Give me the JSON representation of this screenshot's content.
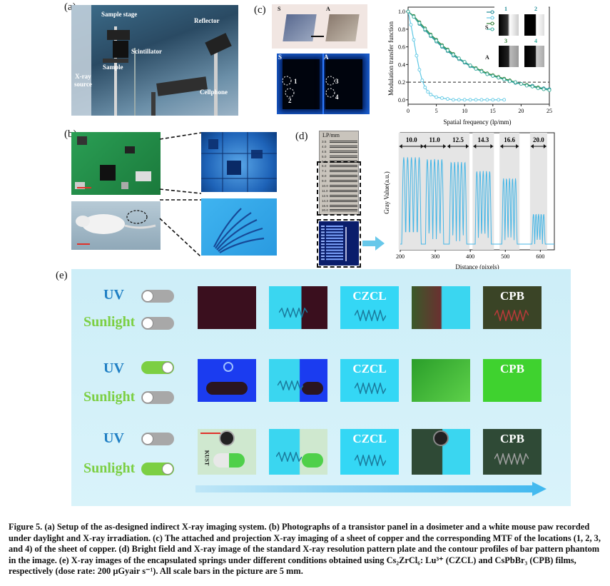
{
  "panel_labels": {
    "a": "(a)",
    "b": "(b)",
    "c": "(c)",
    "d": "(d)",
    "e": "(e)"
  },
  "panel_a": {
    "labels": {
      "sample_stage": "Sample stage",
      "reflector": "Reflector",
      "scintillator": "Scintillator",
      "sample": "Sample",
      "xray_source": "X-ray\nsource",
      "cellphone": "Cellphone"
    }
  },
  "panel_c": {
    "photo_labels": {
      "s": "S",
      "a": "A"
    },
    "xray_labels": {
      "s": "S",
      "a": "A",
      "p1": "1",
      "p2": "2",
      "p3": "3",
      "p4": "4"
    },
    "inset_labels": {
      "s": "S",
      "a": "A",
      "n1": "1",
      "n2": "2",
      "n3": "3",
      "n4": "4"
    }
  },
  "chart_data": [
    {
      "type": "line",
      "xlabel": "Spatial frequency (lp/mm)",
      "ylabel": "Modulation transfer function",
      "xlim": [
        0,
        25
      ],
      "ylim": [
        -0.05,
        1.05
      ],
      "xticks": [
        "0",
        "5",
        "10",
        "15",
        "20",
        "25"
      ],
      "yticks": [
        "0.0",
        "0.2",
        "0.4",
        "0.6",
        "0.8",
        "1.0"
      ],
      "reference_line": 0.2,
      "legend_position": "top-right",
      "series": [
        {
          "name": "1",
          "color": "#1f8a96",
          "x": [
            0,
            1,
            2,
            3,
            4,
            5,
            6,
            7,
            8,
            9,
            10,
            11,
            12,
            13,
            14,
            15,
            16,
            17,
            18,
            19,
            20,
            21,
            22,
            23,
            24,
            25
          ],
          "values": [
            1.0,
            0.94,
            0.86,
            0.79,
            0.72,
            0.66,
            0.6,
            0.55,
            0.5,
            0.46,
            0.42,
            0.38,
            0.35,
            0.32,
            0.29,
            0.27,
            0.25,
            0.23,
            0.21,
            0.19,
            0.18,
            0.17,
            0.16,
            0.14,
            0.13,
            0.12
          ]
        },
        {
          "name": "2",
          "color": "#5fc8e4",
          "x": [
            0,
            0.5,
            1,
            1.5,
            2,
            2.5,
            3,
            3.5,
            4,
            5,
            6,
            7,
            8,
            9,
            10,
            11,
            12,
            13,
            14,
            15,
            16,
            17
          ],
          "values": [
            1.0,
            0.85,
            0.68,
            0.5,
            0.34,
            0.22,
            0.14,
            0.09,
            0.06,
            0.03,
            0.02,
            0.01,
            0.0,
            0.0,
            0.0,
            0.0,
            0.0,
            0.0,
            0.0,
            0.0,
            0.0,
            0.0
          ]
        },
        {
          "name": "3",
          "color": "#2e7d32",
          "x": [
            0,
            1,
            2,
            3,
            4,
            5,
            6,
            7,
            8,
            9,
            10,
            11,
            12,
            13,
            14,
            15,
            16,
            17,
            18,
            19,
            20,
            21,
            22,
            23,
            24,
            25
          ],
          "values": [
            1.0,
            0.95,
            0.88,
            0.81,
            0.74,
            0.68,
            0.62,
            0.57,
            0.52,
            0.47,
            0.43,
            0.39,
            0.36,
            0.33,
            0.3,
            0.28,
            0.26,
            0.24,
            0.22,
            0.2,
            0.18,
            0.17,
            0.15,
            0.14,
            0.12,
            0.11
          ]
        },
        {
          "name": "4",
          "color": "#3aaea0",
          "x": [
            0,
            1,
            2,
            3,
            4,
            5,
            6,
            7,
            8,
            9,
            10,
            11,
            12,
            13,
            14,
            15,
            16,
            17,
            18,
            19,
            20,
            21,
            22,
            23,
            24,
            25
          ],
          "values": [
            1.0,
            0.94,
            0.87,
            0.8,
            0.73,
            0.67,
            0.61,
            0.56,
            0.51,
            0.47,
            0.43,
            0.39,
            0.35,
            0.32,
            0.29,
            0.27,
            0.25,
            0.23,
            0.21,
            0.2,
            0.18,
            0.16,
            0.15,
            0.13,
            0.12,
            0.11
          ]
        }
      ]
    },
    {
      "type": "line",
      "xlabel": "Distance (pixels)",
      "ylabel": "Gray Value(a.u.)",
      "xlim": [
        200,
        640
      ],
      "xticks": [
        "200",
        "300",
        "400",
        "500",
        "600"
      ],
      "groups": [
        {
          "label": "10.0",
          "center": 232,
          "peaks": 5,
          "height": 0.95
        },
        {
          "label": "11.0",
          "center": 298,
          "peaks": 5,
          "height": 0.93
        },
        {
          "label": "12.5",
          "center": 365,
          "peaks": 5,
          "height": 0.9
        },
        {
          "label": "14.3",
          "center": 437,
          "peaks": 5,
          "height": 0.8
        },
        {
          "label": "16.6",
          "center": 512,
          "peaks": 5,
          "height": 0.72
        },
        {
          "label": "20.0",
          "center": 595,
          "peaks": 5,
          "height": 0.33
        }
      ]
    }
  ],
  "panel_d": {
    "plate_header": "LP/mm",
    "plate_rows": [
      "3.5",
      "4.0",
      "4.5",
      "5.0",
      "5.5",
      "6.0",
      "7.1",
      "8.0",
      "9.0",
      "10.0",
      "11.0",
      "12.5",
      "14.3",
      "16.6",
      "20.0"
    ]
  },
  "panel_e": {
    "uv_label": "UV",
    "sunlight_label": "Sunlight",
    "rows": [
      {
        "uv_on": false,
        "sun_on": false,
        "tiles": [
          "",
          "",
          "CZCL",
          "",
          "CPB"
        ]
      },
      {
        "uv_on": true,
        "sun_on": false,
        "tiles": [
          "",
          "",
          "CZCL",
          "",
          "CPB"
        ]
      },
      {
        "uv_on": false,
        "sun_on": true,
        "tiles": [
          "",
          "",
          "CZCL",
          "",
          "CPB"
        ]
      }
    ],
    "side_text": "KUST"
  },
  "caption": "Figure 5. (a) Setup of the as-designed indirect X-ray imaging system. (b) Photographs of a transistor panel in a dosimeter and a white mouse paw recorded under daylight and X-ray irradiation. (c) The attached and projection X-ray imaging of a sheet of copper and the corresponding MTF of the locations (1, 2, 3, and 4) of the sheet of copper. (d) Bright field and X-ray image of the standard X-ray resolution pattern plate and the contour profiles of bar pattern phantom in the image. (e) X-ray images of the encapsulated springs under different conditions obtained using Cs₂ZrCl₆: Lu³⁺ (CZCL) and CsPbBr₃ (CPB) films, respectively (dose rate: 200 μGyair s⁻¹). All scale bars in the picture are 5 mm."
}
